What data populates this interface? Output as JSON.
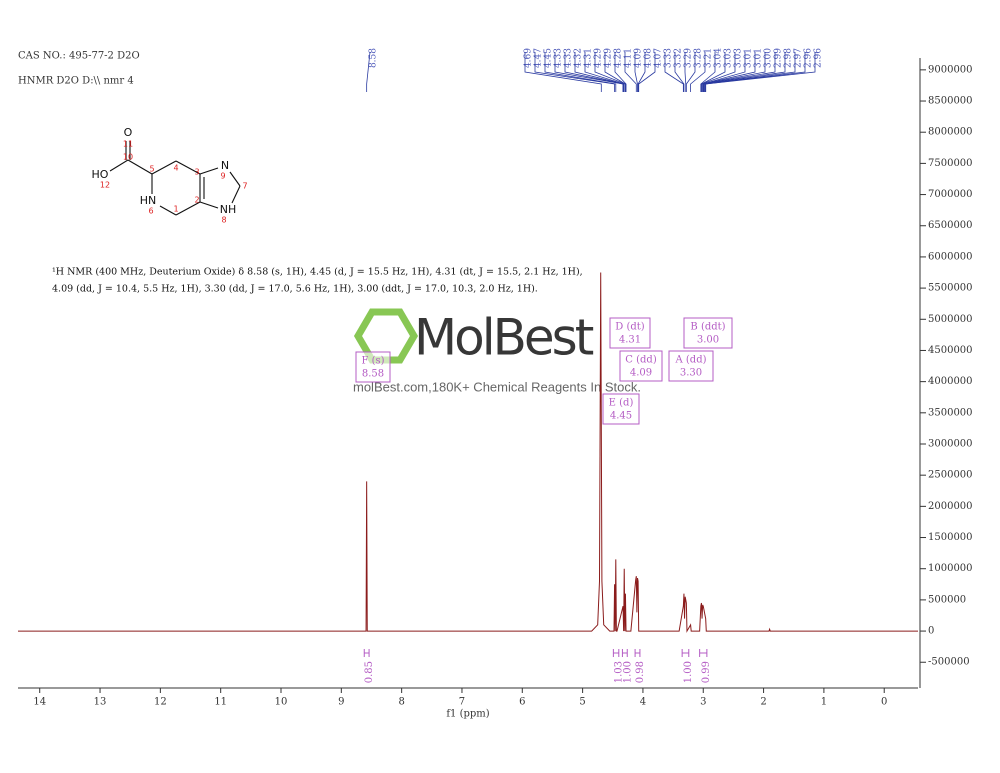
{
  "header": {
    "cas": "CAS NO.: 495-77-2  D2O",
    "file": "HNMR D2O D:\\\\ nmr 4"
  },
  "structure": {
    "labels": [
      "O",
      "11",
      "10",
      "HO",
      "12",
      "5",
      "4",
      "3",
      "N",
      "9",
      "7",
      "2",
      "NH",
      "8",
      "HN",
      "6",
      "1"
    ]
  },
  "description": [
    "¹H NMR (400 MHz, Deuterium Oxide) δ 8.58 (s, 1H), 4.45 (d, J = 15.5 Hz, 1H), 4.31 (dt, J = 15.5, 2.1 Hz, 1H),",
    "4.09 (dd, J = 10.4, 5.5 Hz, 1H), 3.30 (dd, J = 17.0, 5.6 Hz, 1H), 3.00 (ddt, J = 17.0, 10.3, 2.0 Hz, 1H)."
  ],
  "watermark": {
    "brand": "MolBest",
    "tagline": "molBest.com,180K+ Chemical Reagents In Stock."
  },
  "chart_data": {
    "type": "line",
    "x_label": "f1 (ppm)",
    "xlim": [
      14.36,
      -0.56
    ],
    "xticks": [
      14,
      13,
      12,
      11,
      10,
      9,
      8,
      7,
      6,
      5,
      4,
      3,
      2,
      1,
      0
    ],
    "ylim": [
      -913000,
      9190000
    ],
    "yticks": [
      -500000,
      0,
      500000,
      1000000,
      1500000,
      2000000,
      2500000,
      3000000,
      3500000,
      4000000,
      4500000,
      5000000,
      5500000,
      6000000,
      6500000,
      7000000,
      7500000,
      8000000,
      8500000,
      9000000
    ],
    "x": [
      14.36,
      8.62,
      8.59,
      8.58,
      8.57,
      8.54,
      4.85,
      4.75,
      4.72,
      4.7,
      4.68,
      4.65,
      4.55,
      4.48,
      4.47,
      4.46,
      4.45,
      4.44,
      4.43,
      4.33,
      4.32,
      4.31,
      4.3,
      4.29,
      4.28,
      4.2,
      4.12,
      4.11,
      4.1,
      4.09,
      4.08,
      4.07,
      3.4,
      3.33,
      3.32,
      3.31,
      3.3,
      3.29,
      3.28,
      3.27,
      3.21,
      3.2,
      3.06,
      3.04,
      3.03,
      3.02,
      3.01,
      3.0,
      2.99,
      2.98,
      2.97,
      2.96,
      2.95,
      1.91,
      1.9,
      1.89,
      -0.56
    ],
    "series": [
      {
        "color": "#8b1c1c",
        "values": [
          0,
          0,
          0,
          2400000,
          0,
          0,
          0,
          100000,
          800000,
          5750000,
          800000,
          100000,
          0,
          0,
          750000,
          0,
          1150000,
          0,
          0,
          400000,
          0,
          1000000,
          0,
          600000,
          0,
          0,
          820000,
          880000,
          300000,
          850000,
          800000,
          0,
          0,
          400000,
          600000,
          200000,
          550000,
          500000,
          450000,
          0,
          100000,
          0,
          0,
          400000,
          450000,
          200000,
          420000,
          400000,
          350000,
          300000,
          250000,
          200000,
          0,
          0,
          30000,
          0,
          0
        ]
      }
    ],
    "peak_labels": [
      8.58,
      4.69,
      4.47,
      4.45,
      4.33,
      4.33,
      4.32,
      4.31,
      4.29,
      4.29,
      4.28,
      4.11,
      4.09,
      4.08,
      4.07,
      3.33,
      3.32,
      3.29,
      3.28,
      3.21,
      3.04,
      3.03,
      3.03,
      3.01,
      3.01,
      {
        "value": 3,
        "label": "3.00"
      },
      2.99,
      2.98,
      2.97,
      2.96,
      2.96
    ],
    "multiplets": [
      {
        "name": "F (s)",
        "shift": "8.58"
      },
      {
        "name": "D (dt)",
        "shift": "4.31"
      },
      {
        "name": "C (dd)",
        "shift": "4.09"
      },
      {
        "name": "E (d)",
        "shift": "4.45"
      },
      {
        "name": "B (ddt)",
        "shift": "3.00"
      },
      {
        "name": "A (dd)",
        "shift": "3.30"
      }
    ],
    "integrals": [
      {
        "label": "0.85",
        "from": 8.62,
        "to": 8.54
      },
      {
        "label": "1.03",
        "from": 4.49,
        "to": 4.4
      },
      {
        "label": "1.00",
        "from": 4.34,
        "to": 4.26
      },
      {
        "label": "0.98",
        "from": 4.13,
        "to": 4.05
      },
      {
        "label": "1.00",
        "from": 3.35,
        "to": 3.24
      },
      {
        "label": "0.99",
        "from": 3.06,
        "to": 2.94
      }
    ]
  }
}
